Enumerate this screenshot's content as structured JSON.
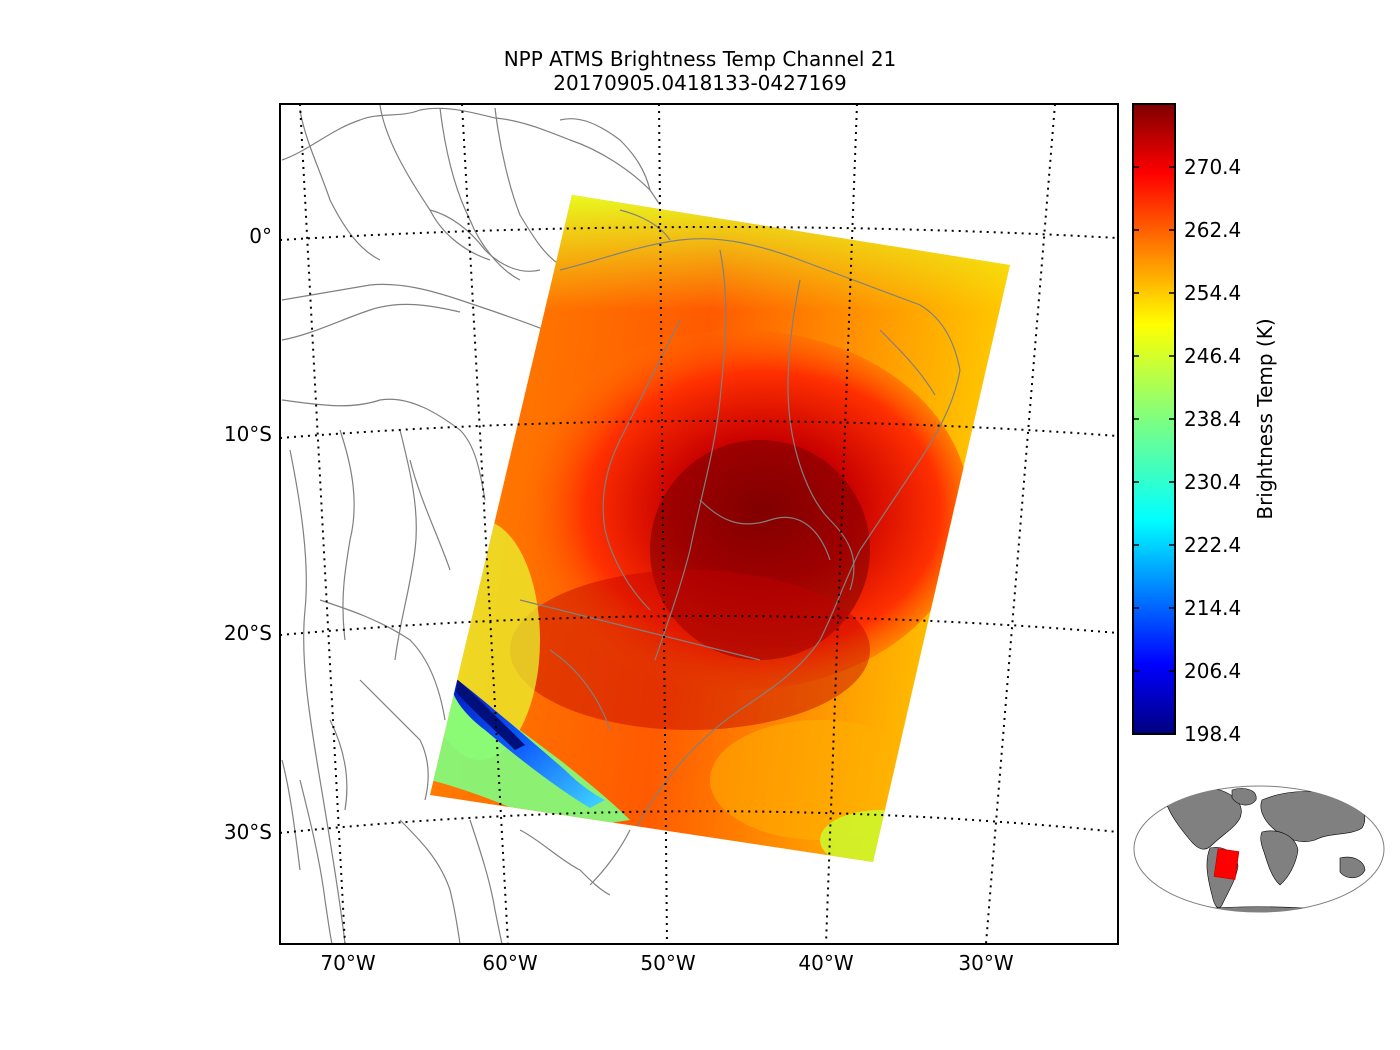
{
  "title": {
    "line1": "NPP ATMS Brightness Temp Channel 21",
    "line2": "20170905.0418133-0427169"
  },
  "map": {
    "lon_labels": [
      "70°W",
      "60°W",
      "50°W",
      "40°W",
      "30°W"
    ],
    "lat_labels": [
      "0°",
      "10°S",
      "20°S",
      "30°S"
    ],
    "grid_style": "dotted",
    "land_outline_color": "#808080",
    "coastline_color": "#808080"
  },
  "swath": {
    "description_colormap": "jet",
    "corners_lonlat": {
      "top_left": [
        -56.0,
        2.0
      ],
      "top_right": [
        -28.5,
        -1.5
      ],
      "bottom_right": [
        -37.5,
        -31.0
      ],
      "bottom_left": [
        -65.0,
        -28.0
      ]
    },
    "warm_core_temp_K": 276,
    "cold_band_temp_K": 200
  },
  "colorbar": {
    "label": "Brightness Temp (K)",
    "min": 198.4,
    "max": 278.4,
    "colormap": "jet",
    "ticks": [
      "270.4",
      "262.4",
      "254.4",
      "246.4",
      "238.4",
      "230.4",
      "222.4",
      "214.4",
      "206.4",
      "198.4"
    ]
  },
  "inset": {
    "land_color": "#808080",
    "swath_color": "#ff0000"
  }
}
